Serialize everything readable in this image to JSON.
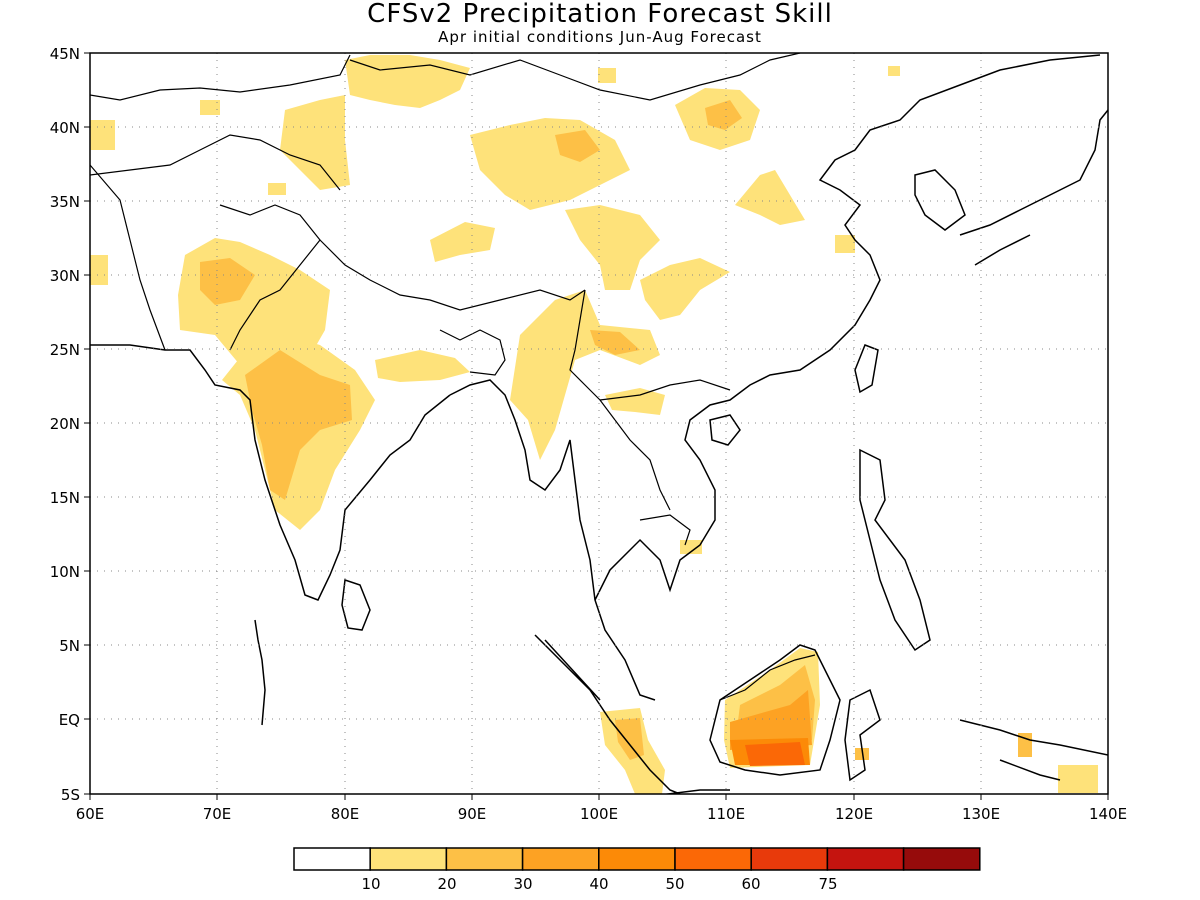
{
  "title": "CFSv2 Precipitation Forecast Skill",
  "subtitle": "Apr initial conditions  Jun-Aug Forecast",
  "lat_labels": [
    "45N",
    "40N",
    "35N",
    "30N",
    "25N",
    "20N",
    "15N",
    "10N",
    "5N",
    "EQ",
    "5S"
  ],
  "lon_labels": [
    "60E",
    "70E",
    "80E",
    "90E",
    "100E",
    "110E",
    "120E",
    "130E",
    "140E"
  ],
  "colorbar": {
    "colors": [
      "#ffffff",
      "#fee27a",
      "#fdc046",
      "#fda223",
      "#fc8a07",
      "#fb6806",
      "#e83a0b",
      "#c5140f",
      "#960b0b"
    ],
    "tick_labels": [
      "10",
      "20",
      "30",
      "40",
      "50",
      "60",
      "75"
    ]
  },
  "palette": {
    "skill_10_20": "#fee27a",
    "skill_20_30": "#fdc046",
    "skill_30_40": "#fda223",
    "skill_40_50": "#fc8a07",
    "skill_50_60": "#fb6806"
  }
}
